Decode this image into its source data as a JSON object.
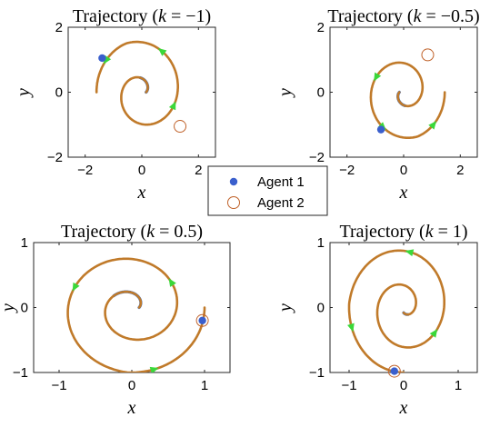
{
  "chart_data": {
    "type": "line",
    "legend": {
      "placement": "center",
      "entries": [
        {
          "label": "Agent 1",
          "marker": "filled-circle",
          "color": "#3a5fcd"
        },
        {
          "label": "Agent 2",
          "marker": "open-circle",
          "color": "#c0622a"
        }
      ]
    },
    "colors": {
      "agent1_path": "#2f6ed0",
      "agent2_path": "#c07a2a",
      "agent1_marker": "#3a5fcd",
      "agent2_marker": "#c0622a",
      "direction_arrows": "#3ad83a"
    },
    "panels": [
      {
        "id": "k-1",
        "title": "Trajectory (k = −1)",
        "title_prefix": "Trajectory (",
        "title_k": "k",
        "title_value": " = −1)",
        "xlabel": "x",
        "ylabel": "y",
        "xlim": [
          -2.6,
          2.6
        ],
        "ylim": [
          -2.0,
          2.0
        ],
        "xticks": [
          -2,
          0,
          2
        ],
        "yticks": [
          -2,
          0,
          2
        ],
        "xticklabels": [
          "−2",
          "0",
          "2"
        ],
        "yticklabels": [
          "−2",
          "0",
          "2"
        ],
        "spiral": {
          "r0": 0.15,
          "r1": 1.6,
          "theta0": 0.0,
          "turns": 1.5,
          "cx": 0.0,
          "cy": 0.0
        },
        "agent1_inner_fraction": 0.18,
        "agent1_position": [
          -1.4,
          1.05
        ],
        "agent2_position": [
          1.35,
          -1.05
        ],
        "arrow_fractions": [
          0.63,
          0.78,
          0.93
        ]
      },
      {
        "id": "k-0.5",
        "title": "Trajectory (k = −0.5)",
        "title_prefix": "Trajectory (",
        "title_k": "k",
        "title_value": " = −0.5)",
        "xlabel": "x",
        "ylabel": "y",
        "xlim": [
          -2.6,
          2.6
        ],
        "ylim": [
          -2.0,
          2.0
        ],
        "xticks": [
          -2,
          0,
          2
        ],
        "yticks": [
          -2,
          0,
          2
        ],
        "xticklabels": [
          "−2",
          "0",
          "2"
        ],
        "yticklabels": [
          "−2",
          "0",
          "2"
        ],
        "spiral": {
          "r0": 0.15,
          "r1": 1.45,
          "theta0": 3.14,
          "turns": 1.5,
          "cx": 0.0,
          "cy": 0.0
        },
        "agent1_inner_fraction": 0.18,
        "agent1_position": [
          -0.8,
          -1.15
        ],
        "agent2_position": [
          0.85,
          1.15
        ],
        "arrow_fractions": [
          0.62,
          0.77,
          0.92
        ]
      },
      {
        "id": "k0.5",
        "title": "Trajectory (k = 0.5)",
        "title_prefix": "Trajectory (",
        "title_k": "k",
        "title_value": " = 0.5)",
        "xlabel": "x",
        "ylabel": "y",
        "xlim": [
          -1.35,
          1.35
        ],
        "ylim": [
          -1.0,
          1.0
        ],
        "xticks": [
          -1,
          0,
          1
        ],
        "yticks": [
          -1,
          0,
          1
        ],
        "xticklabels": [
          "−1",
          "0",
          "1"
        ],
        "yticklabels": [
          "−1",
          "0",
          "1"
        ],
        "spiral": {
          "r0": 0.1,
          "r1": 1.0,
          "theta0": 0.0,
          "turns": 2.0,
          "cx": 0.0,
          "cy": 0.0
        },
        "agent1_inner_fraction": 0.2,
        "agent1_position": [
          0.97,
          -0.2
        ],
        "agent2_position": [
          0.97,
          -0.2
        ],
        "arrow_fractions": [
          0.55,
          0.72,
          0.9
        ]
      },
      {
        "id": "k1",
        "title": "Trajectory (k = 1)",
        "title_prefix": "Trajectory (",
        "title_k": "k",
        "title_value": " = 1)",
        "xlabel": "x",
        "ylabel": "y",
        "xlim": [
          -1.35,
          1.35
        ],
        "ylim": [
          -1.0,
          1.0
        ],
        "xticks": [
          -1,
          0,
          1
        ],
        "yticks": [
          -1,
          0,
          1
        ],
        "xticklabels": [
          "−1",
          "0",
          "1"
        ],
        "yticklabels": [
          "−1",
          "0",
          "1"
        ],
        "spiral": {
          "r0": 0.08,
          "r1": 1.0,
          "theta0": -1.57,
          "turns": 2.0,
          "cx": 0.0,
          "cy": 0.0
        },
        "agent1_inner_fraction": 0.05,
        "agent1_position": [
          -0.17,
          -0.98
        ],
        "agent2_position": [
          -0.17,
          -0.98
        ],
        "arrow_fractions": [
          0.58,
          0.74,
          0.9
        ]
      }
    ]
  }
}
